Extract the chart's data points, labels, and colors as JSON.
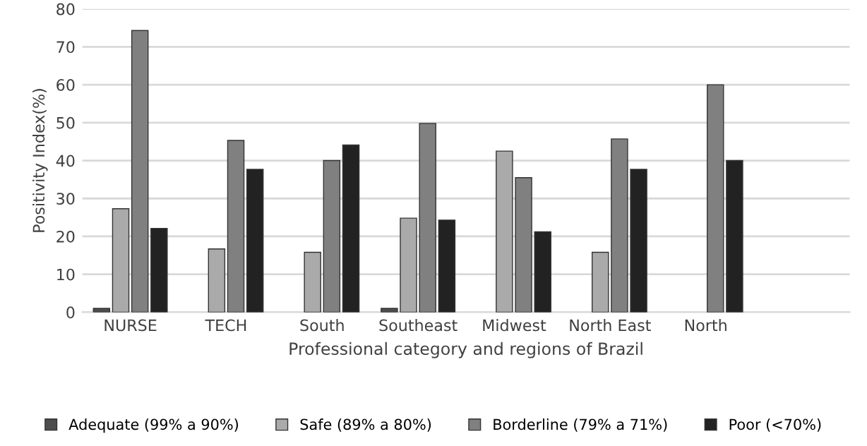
{
  "chart_data": {
    "type": "bar",
    "xlabel": "Professional category and regions of Brazil",
    "ylabel": "Positivity Index(%)",
    "categories": [
      "NURSE",
      "TECH",
      "South",
      "Southeast",
      "Midwest",
      "North East",
      "North",
      null
    ],
    "series": [
      {
        "name": "Adequate (99% a 90%)",
        "color": "#4d4d4d",
        "values": [
          1,
          null,
          null,
          1,
          null,
          null,
          null,
          null
        ]
      },
      {
        "name": "Safe (89% a 80%)",
        "color": "#aaaaaa",
        "values": [
          27.3,
          16.7,
          15.8,
          24.8,
          42.5,
          15.8,
          null,
          null
        ]
      },
      {
        "name": "Borderline (79% a 71%)",
        "color": "#808080",
        "values": [
          74.3,
          45.3,
          40,
          49.8,
          35.5,
          45.7,
          60,
          null
        ]
      },
      {
        "name": "Poor (<70%)",
        "color": "#222222",
        "values": [
          22.1,
          37.7,
          44.1,
          24.3,
          21.2,
          37.7,
          40,
          null
        ]
      }
    ],
    "ylim": [
      0,
      80
    ],
    "yticks": [
      0,
      10,
      20,
      30,
      40,
      50,
      60,
      70,
      80
    ],
    "grid": "y",
    "legend": "bottom"
  }
}
